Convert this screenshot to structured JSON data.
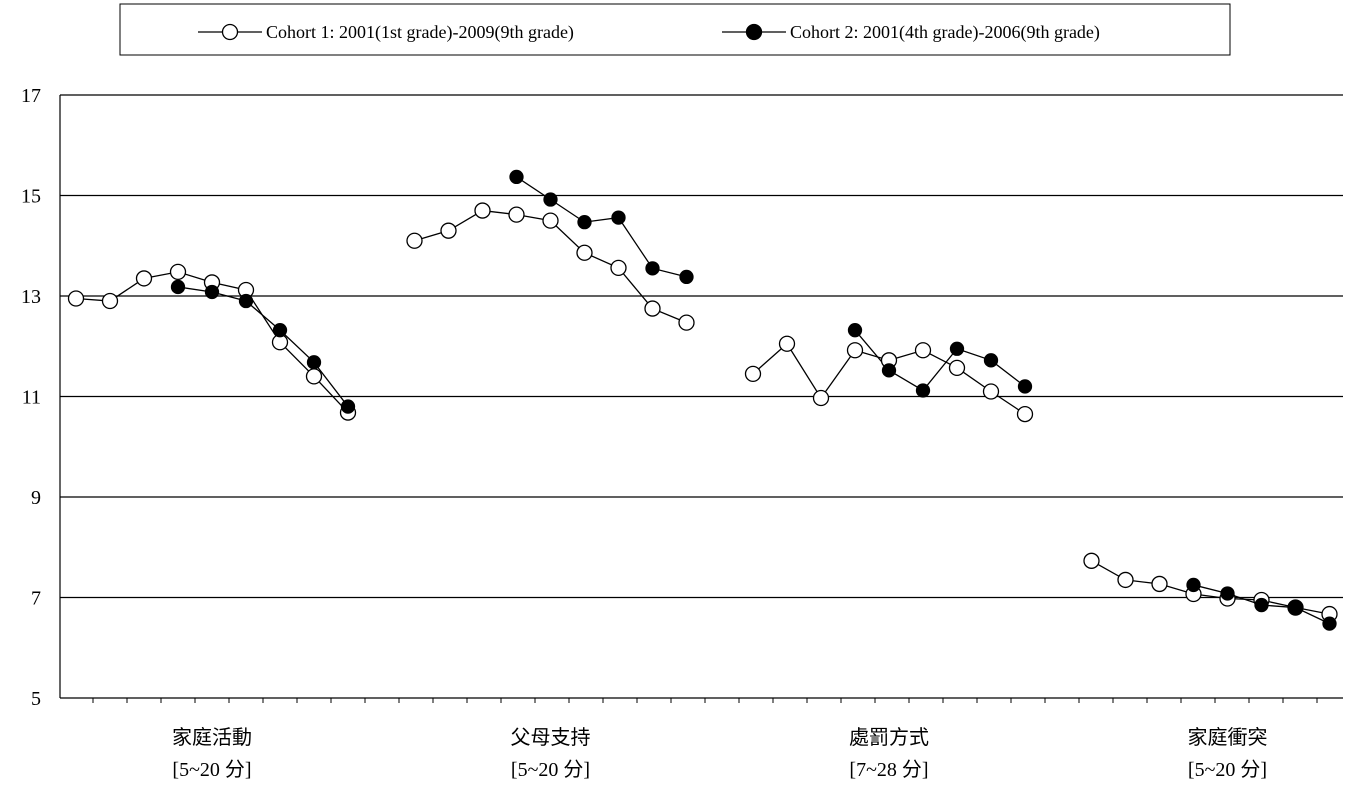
{
  "chart_data": {
    "type": "line",
    "ylim": [
      5,
      17
    ],
    "yticks": [
      5,
      7,
      9,
      11,
      13,
      15,
      17
    ],
    "grid": true,
    "legend_position": "top-center",
    "groups": [
      {
        "label": "家庭活動",
        "range": "[5~20 分]",
        "c1_start_slot": 0,
        "c2_start_slot": 3
      },
      {
        "label": "父母支持",
        "range": "[5~20 分]",
        "c1_start_slot": 0,
        "c2_start_slot": 3
      },
      {
        "label": "處罰方式",
        "range": "[7~28 分]",
        "c1_start_slot": 0,
        "c2_start_slot": 3
      },
      {
        "label": "家庭衝突",
        "range": "[5~20 分]",
        "c1_start_slot": 0,
        "c2_start_slot": 3
      }
    ],
    "series": [
      {
        "name": "Cohort 1: 2001(1st grade)-2009(9th grade)",
        "marker": "open",
        "values": [
          [
            12.95,
            12.9,
            13.35,
            13.48,
            13.27,
            13.12,
            12.08,
            11.4,
            10.68
          ],
          [
            14.1,
            14.3,
            14.7,
            14.62,
            14.5,
            13.86,
            13.56,
            12.75,
            12.47
          ],
          [
            11.45,
            12.05,
            10.97,
            11.92,
            11.72,
            11.92,
            11.57,
            11.1,
            10.65
          ],
          [
            7.73,
            7.35,
            7.27,
            7.07,
            6.98,
            6.95,
            6.8,
            6.67
          ]
        ]
      },
      {
        "name": "Cohort 2: 2001(4th grade)-2006(9th grade)",
        "marker": "filled",
        "values": [
          [
            13.18,
            13.08,
            12.9,
            12.32,
            11.68,
            10.8
          ],
          [
            15.37,
            14.92,
            14.47,
            14.56,
            13.55,
            13.38
          ],
          [
            12.32,
            11.52,
            11.12,
            11.95,
            11.72,
            11.2
          ],
          [
            7.25,
            7.08,
            6.85,
            6.8,
            6.48
          ]
        ]
      }
    ]
  }
}
